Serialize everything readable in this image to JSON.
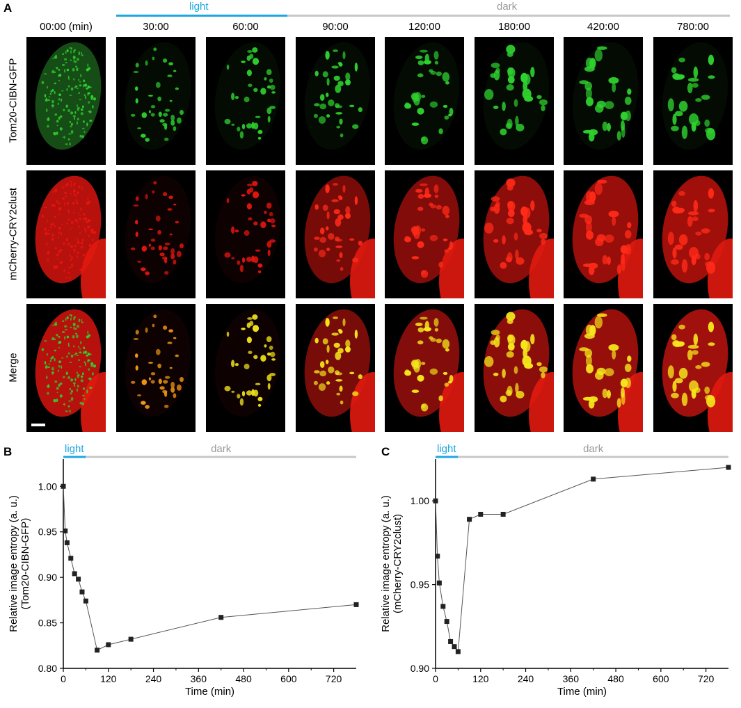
{
  "panelA": {
    "letter": "A",
    "light_label": "light",
    "dark_label": "dark",
    "time_labels": [
      "00:00 (min)",
      "30:00",
      "60:00",
      "90:00",
      "120:00",
      "180:00",
      "420:00",
      "780:00"
    ],
    "rows": [
      {
        "label": "Tom20-CIBN-GFP",
        "channel": "green"
      },
      {
        "label": "mCherry-CRY2clust",
        "channel": "red"
      },
      {
        "label": "Merge",
        "channel": "merge"
      }
    ],
    "colors": {
      "light": "#1ba8e0",
      "dark": "#c8c8c8",
      "green": "#2fd12f",
      "red": "#e8160f",
      "yellow": "#f5e61c",
      "orange": "#f59a15"
    }
  },
  "panelB": {
    "letter": "B",
    "light_label": "light",
    "dark_label": "dark"
  },
  "panelC": {
    "letter": "C",
    "light_label": "light",
    "dark_label": "dark"
  },
  "chart_data": [
    {
      "type": "line",
      "panel": "B",
      "xlabel": "Time (min)",
      "ylabel": "Relative image entropy (a. u.)",
      "ylabel2": "(Tom20-CIBN-GFP)",
      "xlim": [
        0,
        780
      ],
      "ylim": [
        0.8,
        1.03
      ],
      "xticks": [
        0,
        120,
        240,
        360,
        480,
        600,
        720
      ],
      "yticks": [
        0.8,
        0.85,
        0.9,
        0.95,
        1.0
      ],
      "ytick_labels": [
        "0.80",
        "0.85",
        "0.90",
        "0.95",
        "1.00"
      ],
      "light_interval": [
        0,
        60
      ],
      "dark_interval": [
        60,
        780
      ],
      "series": [
        {
          "x": [
            0,
            5,
            10,
            20,
            30,
            40,
            50,
            60,
            90,
            120,
            180,
            420,
            780
          ],
          "y": [
            1.0,
            0.951,
            0.938,
            0.921,
            0.904,
            0.898,
            0.884,
            0.874,
            0.82,
            0.826,
            0.832,
            0.856,
            0.87
          ]
        }
      ]
    },
    {
      "type": "line",
      "panel": "C",
      "xlabel": "Time (min)",
      "ylabel": "Relative image entropy (a. u.)",
      "ylabel2": "(mCherry-CRY2clust)",
      "xlim": [
        0,
        780
      ],
      "ylim": [
        0.9,
        1.025
      ],
      "xticks": [
        0,
        120,
        240,
        360,
        480,
        600,
        720
      ],
      "yticks": [
        0.9,
        0.95,
        1.0
      ],
      "ytick_labels": [
        "0.90",
        "0.95",
        "1.00"
      ],
      "light_interval": [
        0,
        60
      ],
      "dark_interval": [
        60,
        780
      ],
      "series": [
        {
          "x": [
            0,
            5,
            10,
            20,
            30,
            40,
            50,
            60,
            90,
            120,
            180,
            420,
            780
          ],
          "y": [
            1.0,
            0.967,
            0.951,
            0.937,
            0.928,
            0.916,
            0.913,
            0.91,
            0.989,
            0.992,
            0.992,
            1.013,
            1.02
          ]
        }
      ]
    }
  ]
}
